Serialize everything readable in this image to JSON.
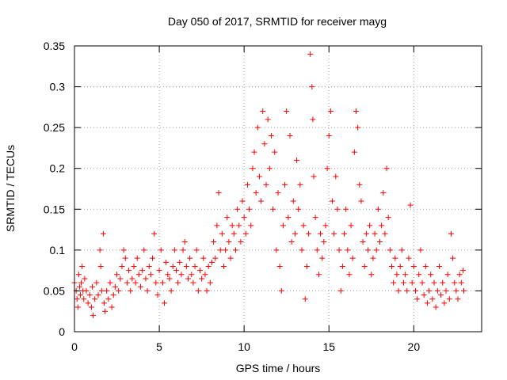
{
  "chart_data": {
    "type": "scatter",
    "title": "Day 050 of 2017, SRMTID for receiver mayg",
    "xlabel": "GPS time / hours",
    "ylabel": "SRMTID / TECUs",
    "xlim": [
      0,
      24
    ],
    "ylim": [
      0,
      0.35
    ],
    "xticks": [
      0,
      5,
      10,
      15,
      20
    ],
    "xtick_labels": [
      "0",
      "5",
      "10",
      "15",
      "20"
    ],
    "yticks": [
      0,
      0.05,
      0.1,
      0.15,
      0.2,
      0.25,
      0.3,
      0.35
    ],
    "ytick_labels": [
      "0",
      "0.05",
      "0.1",
      "0.15",
      "0.2",
      "0.25",
      "0.3",
      "0.35"
    ],
    "grid": true,
    "marker": "plus",
    "color": "#ff0000",
    "series": [
      {
        "name": "SRMTID",
        "points": [
          [
            0.0,
            0.06
          ],
          [
            0.1,
            0.05
          ],
          [
            0.15,
            0.04
          ],
          [
            0.2,
            0.03
          ],
          [
            0.25,
            0.07
          ],
          [
            0.3,
            0.055
          ],
          [
            0.35,
            0.045
          ],
          [
            0.4,
            0.06
          ],
          [
            0.45,
            0.08
          ],
          [
            0.5,
            0.05
          ],
          [
            0.55,
            0.04
          ],
          [
            0.6,
            0.065
          ],
          [
            0.7,
            0.05
          ],
          [
            0.8,
            0.035
          ],
          [
            0.9,
            0.045
          ],
          [
            1.0,
            0.03
          ],
          [
            1.05,
            0.055
          ],
          [
            1.1,
            0.02
          ],
          [
            1.2,
            0.04
          ],
          [
            1.3,
            0.06
          ],
          [
            1.4,
            0.045
          ],
          [
            1.5,
            0.1
          ],
          [
            1.55,
            0.08
          ],
          [
            1.6,
            0.05
          ],
          [
            1.7,
            0.12
          ],
          [
            1.75,
            0.035
          ],
          [
            1.8,
            0.025
          ],
          [
            1.9,
            0.05
          ],
          [
            2.0,
            0.04
          ],
          [
            2.1,
            0.06
          ],
          [
            2.2,
            0.03
          ],
          [
            2.3,
            0.045
          ],
          [
            2.4,
            0.055
          ],
          [
            2.5,
            0.07
          ],
          [
            2.6,
            0.05
          ],
          [
            2.7,
            0.065
          ],
          [
            2.8,
            0.08
          ],
          [
            2.9,
            0.1
          ],
          [
            3.0,
            0.09
          ],
          [
            3.1,
            0.06
          ],
          [
            3.2,
            0.075
          ],
          [
            3.3,
            0.05
          ],
          [
            3.4,
            0.065
          ],
          [
            3.5,
            0.08
          ],
          [
            3.6,
            0.06
          ],
          [
            3.7,
            0.09
          ],
          [
            3.8,
            0.07
          ],
          [
            3.9,
            0.055
          ],
          [
            4.0,
            0.075
          ],
          [
            4.1,
            0.1
          ],
          [
            4.2,
            0.065
          ],
          [
            4.3,
            0.05
          ],
          [
            4.4,
            0.08
          ],
          [
            4.5,
            0.07
          ],
          [
            4.6,
            0.09
          ],
          [
            4.7,
            0.12
          ],
          [
            4.8,
            0.06
          ],
          [
            4.9,
            0.045
          ],
          [
            5.0,
            0.075
          ],
          [
            5.1,
            0.1
          ],
          [
            5.2,
            0.06
          ],
          [
            5.3,
            0.035
          ],
          [
            5.4,
            0.085
          ],
          [
            5.5,
            0.07
          ],
          [
            5.6,
            0.065
          ],
          [
            5.7,
            0.05
          ],
          [
            5.8,
            0.08
          ],
          [
            5.9,
            0.1
          ],
          [
            6.0,
            0.075
          ],
          [
            6.1,
            0.06
          ],
          [
            6.2,
            0.085
          ],
          [
            6.3,
            0.07
          ],
          [
            6.4,
            0.1
          ],
          [
            6.5,
            0.11
          ],
          [
            6.6,
            0.08
          ],
          [
            6.7,
            0.065
          ],
          [
            6.8,
            0.09
          ],
          [
            6.9,
            0.07
          ],
          [
            7.0,
            0.06
          ],
          [
            7.1,
            0.08
          ],
          [
            7.2,
            0.1
          ],
          [
            7.3,
            0.05
          ],
          [
            7.4,
            0.075
          ],
          [
            7.5,
            0.065
          ],
          [
            7.6,
            0.09
          ],
          [
            7.7,
            0.07
          ],
          [
            7.8,
            0.05
          ],
          [
            7.9,
            0.08
          ],
          [
            8.0,
            0.06
          ],
          [
            8.1,
            0.085
          ],
          [
            8.2,
            0.11
          ],
          [
            8.3,
            0.09
          ],
          [
            8.4,
            0.13
          ],
          [
            8.5,
            0.17
          ],
          [
            8.6,
            0.1
          ],
          [
            8.7,
            0.12
          ],
          [
            8.8,
            0.08
          ],
          [
            8.9,
            0.1
          ],
          [
            9.0,
            0.14
          ],
          [
            9.1,
            0.11
          ],
          [
            9.2,
            0.09
          ],
          [
            9.3,
            0.13
          ],
          [
            9.4,
            0.12
          ],
          [
            9.5,
            0.1
          ],
          [
            9.6,
            0.15
          ],
          [
            9.7,
            0.13
          ],
          [
            9.8,
            0.11
          ],
          [
            9.9,
            0.16
          ],
          [
            10.0,
            0.14
          ],
          [
            10.1,
            0.12
          ],
          [
            10.2,
            0.18
          ],
          [
            10.3,
            0.15
          ],
          [
            10.4,
            0.13
          ],
          [
            10.5,
            0.2
          ],
          [
            10.6,
            0.22
          ],
          [
            10.7,
            0.17
          ],
          [
            10.8,
            0.25
          ],
          [
            10.9,
            0.19
          ],
          [
            11.0,
            0.16
          ],
          [
            11.1,
            0.27
          ],
          [
            11.2,
            0.23
          ],
          [
            11.3,
            0.18
          ],
          [
            11.4,
            0.26
          ],
          [
            11.5,
            0.2
          ],
          [
            11.6,
            0.24
          ],
          [
            11.7,
            0.15
          ],
          [
            11.8,
            0.22
          ],
          [
            11.9,
            0.1
          ],
          [
            12.0,
            0.17
          ],
          [
            12.1,
            0.08
          ],
          [
            12.2,
            0.05
          ],
          [
            12.3,
            0.13
          ],
          [
            12.4,
            0.18
          ],
          [
            12.5,
            0.27
          ],
          [
            12.6,
            0.14
          ],
          [
            12.7,
            0.24
          ],
          [
            12.8,
            0.11
          ],
          [
            12.9,
            0.16
          ],
          [
            13.0,
            0.12
          ],
          [
            13.1,
            0.21
          ],
          [
            13.2,
            0.15
          ],
          [
            13.3,
            0.18
          ],
          [
            13.4,
            0.1
          ],
          [
            13.5,
            0.13
          ],
          [
            13.6,
            0.04
          ],
          [
            13.7,
            0.08
          ],
          [
            13.8,
            0.12
          ],
          [
            13.9,
            0.34
          ],
          [
            14.0,
            0.3
          ],
          [
            14.05,
            0.26
          ],
          [
            14.1,
            0.19
          ],
          [
            14.2,
            0.14
          ],
          [
            14.3,
            0.1
          ],
          [
            14.4,
            0.07
          ],
          [
            14.5,
            0.12
          ],
          [
            14.6,
            0.09
          ],
          [
            14.7,
            0.11
          ],
          [
            14.8,
            0.13
          ],
          [
            14.9,
            0.2
          ],
          [
            15.0,
            0.24
          ],
          [
            15.1,
            0.27
          ],
          [
            15.2,
            0.16
          ],
          [
            15.3,
            0.12
          ],
          [
            15.4,
            0.19
          ],
          [
            15.5,
            0.15
          ],
          [
            15.6,
            0.1
          ],
          [
            15.7,
            0.05
          ],
          [
            15.8,
            0.08
          ],
          [
            15.9,
            0.12
          ],
          [
            16.0,
            0.15
          ],
          [
            16.1,
            0.1
          ],
          [
            16.2,
            0.07
          ],
          [
            16.3,
            0.13
          ],
          [
            16.4,
            0.09
          ],
          [
            16.5,
            0.22
          ],
          [
            16.6,
            0.27
          ],
          [
            16.7,
            0.25
          ],
          [
            16.8,
            0.18
          ],
          [
            16.9,
            0.16
          ],
          [
            17.0,
            0.11
          ],
          [
            17.1,
            0.08
          ],
          [
            17.2,
            0.12
          ],
          [
            17.3,
            0.1
          ],
          [
            17.4,
            0.13
          ],
          [
            17.5,
            0.07
          ],
          [
            17.6,
            0.09
          ],
          [
            17.7,
            0.12
          ],
          [
            17.8,
            0.1
          ],
          [
            17.9,
            0.15
          ],
          [
            18.0,
            0.11
          ],
          [
            18.1,
            0.13
          ],
          [
            18.2,
            0.17
          ],
          [
            18.3,
            0.12
          ],
          [
            18.4,
            0.2
          ],
          [
            18.5,
            0.14
          ],
          [
            18.6,
            0.1
          ],
          [
            18.7,
            0.08
          ],
          [
            18.8,
            0.06
          ],
          [
            18.9,
            0.09
          ],
          [
            19.0,
            0.07
          ],
          [
            19.1,
            0.05
          ],
          [
            19.2,
            0.08
          ],
          [
            19.3,
            0.1
          ],
          [
            19.4,
            0.06
          ],
          [
            19.5,
            0.07
          ],
          [
            19.6,
            0.05
          ],
          [
            19.7,
            0.09
          ],
          [
            19.8,
            0.155
          ],
          [
            19.9,
            0.06
          ],
          [
            20.0,
            0.08
          ],
          [
            20.1,
            0.05
          ],
          [
            20.2,
            0.04
          ],
          [
            20.3,
            0.07
          ],
          [
            20.4,
            0.1
          ],
          [
            20.5,
            0.06
          ],
          [
            20.6,
            0.045
          ],
          [
            20.7,
            0.08
          ],
          [
            20.8,
            0.035
          ],
          [
            20.9,
            0.05
          ],
          [
            21.0,
            0.07
          ],
          [
            21.1,
            0.04
          ],
          [
            21.2,
            0.06
          ],
          [
            21.3,
            0.03
          ],
          [
            21.4,
            0.05
          ],
          [
            21.5,
            0.08
          ],
          [
            21.6,
            0.045
          ],
          [
            21.7,
            0.06
          ],
          [
            21.8,
            0.035
          ],
          [
            21.9,
            0.05
          ],
          [
            22.0,
            0.07
          ],
          [
            22.1,
            0.04
          ],
          [
            22.2,
            0.12
          ],
          [
            22.3,
            0.09
          ],
          [
            22.4,
            0.06
          ],
          [
            22.5,
            0.05
          ],
          [
            22.6,
            0.04
          ],
          [
            22.7,
            0.07
          ],
          [
            22.8,
            0.06
          ],
          [
            22.9,
            0.075
          ],
          [
            22.95,
            0.05
          ]
        ]
      }
    ]
  }
}
